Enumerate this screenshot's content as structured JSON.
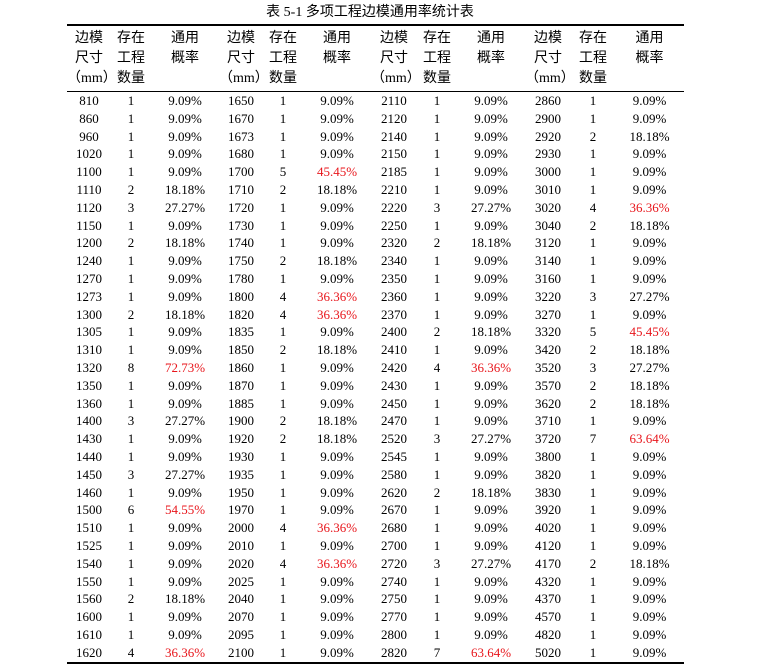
{
  "caption": "表 5-1  多项工程边模通用率统计表",
  "header": {
    "size": [
      "边模",
      "尺寸",
      "（mm）"
    ],
    "count": [
      "存在",
      "工程",
      "数量"
    ],
    "rate": [
      "通用",
      "概率"
    ]
  },
  "colors": {
    "highlight": "#e8151b",
    "text": "#000000"
  },
  "rows": [
    [
      [
        "810",
        "1",
        "9.09%"
      ],
      [
        "1650",
        "1",
        "9.09%"
      ],
      [
        "2110",
        "1",
        "9.09%"
      ],
      [
        "2860",
        "1",
        "9.09%"
      ]
    ],
    [
      [
        "860",
        "1",
        "9.09%"
      ],
      [
        "1670",
        "1",
        "9.09%"
      ],
      [
        "2120",
        "1",
        "9.09%"
      ],
      [
        "2900",
        "1",
        "9.09%"
      ]
    ],
    [
      [
        "960",
        "1",
        "9.09%"
      ],
      [
        "1673",
        "1",
        "9.09%"
      ],
      [
        "2140",
        "1",
        "9.09%"
      ],
      [
        "2920",
        "2",
        "18.18%"
      ]
    ],
    [
      [
        "1020",
        "1",
        "9.09%"
      ],
      [
        "1680",
        "1",
        "9.09%"
      ],
      [
        "2150",
        "1",
        "9.09%"
      ],
      [
        "2930",
        "1",
        "9.09%"
      ]
    ],
    [
      [
        "1100",
        "1",
        "9.09%"
      ],
      [
        "1700",
        "5",
        "45.45%"
      ],
      [
        "2185",
        "1",
        "9.09%"
      ],
      [
        "3000",
        "1",
        "9.09%"
      ]
    ],
    [
      [
        "1110",
        "2",
        "18.18%"
      ],
      [
        "1710",
        "2",
        "18.18%"
      ],
      [
        "2210",
        "1",
        "9.09%"
      ],
      [
        "3010",
        "1",
        "9.09%"
      ]
    ],
    [
      [
        "1120",
        "3",
        "27.27%"
      ],
      [
        "1720",
        "1",
        "9.09%"
      ],
      [
        "2220",
        "3",
        "27.27%"
      ],
      [
        "3020",
        "4",
        "36.36%"
      ]
    ],
    [
      [
        "1150",
        "1",
        "9.09%"
      ],
      [
        "1730",
        "1",
        "9.09%"
      ],
      [
        "2250",
        "1",
        "9.09%"
      ],
      [
        "3040",
        "2",
        "18.18%"
      ]
    ],
    [
      [
        "1200",
        "2",
        "18.18%"
      ],
      [
        "1740",
        "1",
        "9.09%"
      ],
      [
        "2320",
        "2",
        "18.18%"
      ],
      [
        "3120",
        "1",
        "9.09%"
      ]
    ],
    [
      [
        "1240",
        "1",
        "9.09%"
      ],
      [
        "1750",
        "2",
        "18.18%"
      ],
      [
        "2340",
        "1",
        "9.09%"
      ],
      [
        "3140",
        "1",
        "9.09%"
      ]
    ],
    [
      [
        "1270",
        "1",
        "9.09%"
      ],
      [
        "1780",
        "1",
        "9.09%"
      ],
      [
        "2350",
        "1",
        "9.09%"
      ],
      [
        "3160",
        "1",
        "9.09%"
      ]
    ],
    [
      [
        "1273",
        "1",
        "9.09%"
      ],
      [
        "1800",
        "4",
        "36.36%"
      ],
      [
        "2360",
        "1",
        "9.09%"
      ],
      [
        "3220",
        "3",
        "27.27%"
      ]
    ],
    [
      [
        "1300",
        "2",
        "18.18%"
      ],
      [
        "1820",
        "4",
        "36.36%"
      ],
      [
        "2370",
        "1",
        "9.09%"
      ],
      [
        "3270",
        "1",
        "9.09%"
      ]
    ],
    [
      [
        "1305",
        "1",
        "9.09%"
      ],
      [
        "1835",
        "1",
        "9.09%"
      ],
      [
        "2400",
        "2",
        "18.18%"
      ],
      [
        "3320",
        "5",
        "45.45%"
      ]
    ],
    [
      [
        "1310",
        "1",
        "9.09%"
      ],
      [
        "1850",
        "2",
        "18.18%"
      ],
      [
        "2410",
        "1",
        "9.09%"
      ],
      [
        "3420",
        "2",
        "18.18%"
      ]
    ],
    [
      [
        "1320",
        "8",
        "72.73%"
      ],
      [
        "1860",
        "1",
        "9.09%"
      ],
      [
        "2420",
        "4",
        "36.36%"
      ],
      [
        "3520",
        "3",
        "27.27%"
      ]
    ],
    [
      [
        "1350",
        "1",
        "9.09%"
      ],
      [
        "1870",
        "1",
        "9.09%"
      ],
      [
        "2430",
        "1",
        "9.09%"
      ],
      [
        "3570",
        "2",
        "18.18%"
      ]
    ],
    [
      [
        "1360",
        "1",
        "9.09%"
      ],
      [
        "1885",
        "1",
        "9.09%"
      ],
      [
        "2450",
        "1",
        "9.09%"
      ],
      [
        "3620",
        "2",
        "18.18%"
      ]
    ],
    [
      [
        "1400",
        "3",
        "27.27%"
      ],
      [
        "1900",
        "2",
        "18.18%"
      ],
      [
        "2470",
        "1",
        "9.09%"
      ],
      [
        "3710",
        "1",
        "9.09%"
      ]
    ],
    [
      [
        "1430",
        "1",
        "9.09%"
      ],
      [
        "1920",
        "2",
        "18.18%"
      ],
      [
        "2520",
        "3",
        "27.27%"
      ],
      [
        "3720",
        "7",
        "63.64%"
      ]
    ],
    [
      [
        "1440",
        "1",
        "9.09%"
      ],
      [
        "1930",
        "1",
        "9.09%"
      ],
      [
        "2545",
        "1",
        "9.09%"
      ],
      [
        "3800",
        "1",
        "9.09%"
      ]
    ],
    [
      [
        "1450",
        "3",
        "27.27%"
      ],
      [
        "1935",
        "1",
        "9.09%"
      ],
      [
        "2580",
        "1",
        "9.09%"
      ],
      [
        "3820",
        "1",
        "9.09%"
      ]
    ],
    [
      [
        "1460",
        "1",
        "9.09%"
      ],
      [
        "1950",
        "1",
        "9.09%"
      ],
      [
        "2620",
        "2",
        "18.18%"
      ],
      [
        "3830",
        "1",
        "9.09%"
      ]
    ],
    [
      [
        "1500",
        "6",
        "54.55%"
      ],
      [
        "1970",
        "1",
        "9.09%"
      ],
      [
        "2670",
        "1",
        "9.09%"
      ],
      [
        "3920",
        "1",
        "9.09%"
      ]
    ],
    [
      [
        "1510",
        "1",
        "9.09%"
      ],
      [
        "2000",
        "4",
        "36.36%"
      ],
      [
        "2680",
        "1",
        "9.09%"
      ],
      [
        "4020",
        "1",
        "9.09%"
      ]
    ],
    [
      [
        "1525",
        "1",
        "9.09%"
      ],
      [
        "2010",
        "1",
        "9.09%"
      ],
      [
        "2700",
        "1",
        "9.09%"
      ],
      [
        "4120",
        "1",
        "9.09%"
      ]
    ],
    [
      [
        "1540",
        "1",
        "9.09%"
      ],
      [
        "2020",
        "4",
        "36.36%"
      ],
      [
        "2720",
        "3",
        "27.27%"
      ],
      [
        "4170",
        "2",
        "18.18%"
      ]
    ],
    [
      [
        "1550",
        "1",
        "9.09%"
      ],
      [
        "2025",
        "1",
        "9.09%"
      ],
      [
        "2740",
        "1",
        "9.09%"
      ],
      [
        "4320",
        "1",
        "9.09%"
      ]
    ],
    [
      [
        "1560",
        "2",
        "18.18%"
      ],
      [
        "2040",
        "1",
        "9.09%"
      ],
      [
        "2750",
        "1",
        "9.09%"
      ],
      [
        "4370",
        "1",
        "9.09%"
      ]
    ],
    [
      [
        "1600",
        "1",
        "9.09%"
      ],
      [
        "2070",
        "1",
        "9.09%"
      ],
      [
        "2770",
        "1",
        "9.09%"
      ],
      [
        "4570",
        "1",
        "9.09%"
      ]
    ],
    [
      [
        "1610",
        "1",
        "9.09%"
      ],
      [
        "2095",
        "1",
        "9.09%"
      ],
      [
        "2800",
        "1",
        "9.09%"
      ],
      [
        "4820",
        "1",
        "9.09%"
      ]
    ],
    [
      [
        "1620",
        "4",
        "36.36%"
      ],
      [
        "2100",
        "1",
        "9.09%"
      ],
      [
        "2820",
        "7",
        "63.64%"
      ],
      [
        "5020",
        "1",
        "9.09%"
      ]
    ]
  ]
}
